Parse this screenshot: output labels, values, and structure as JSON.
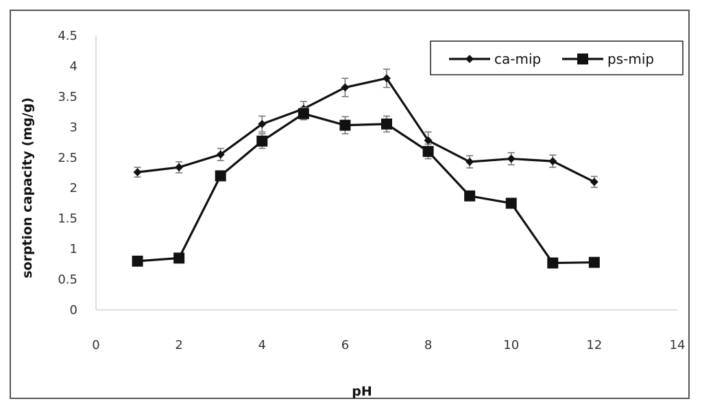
{
  "chart_data": {
    "type": "line",
    "title": "",
    "xlabel": "pH",
    "ylabel": "sorption capacity (mg/g)",
    "xlim": [
      0,
      14
    ],
    "ylim": [
      0,
      4.5
    ],
    "x_ticks": [
      "0",
      "2",
      "4",
      "6",
      "8",
      "10",
      "12",
      "14"
    ],
    "y_ticks": [
      "0",
      "0.5",
      "1",
      "1.5",
      "2",
      "2.5",
      "3",
      "3.5",
      "4",
      "4.5"
    ],
    "grid": false,
    "legend_position": "top-right",
    "series": [
      {
        "name": "ca-mip",
        "marker": "diamond",
        "color": "#111111",
        "x": [
          1,
          2,
          3,
          4,
          5,
          6,
          7,
          8,
          9,
          10,
          11,
          12
        ],
        "y": [
          2.26,
          2.34,
          2.55,
          3.05,
          3.3,
          3.65,
          3.8,
          2.78,
          2.43,
          2.48,
          2.44,
          2.1
        ],
        "error": [
          0.08,
          0.09,
          0.1,
          0.13,
          0.12,
          0.15,
          0.15,
          0.14,
          0.1,
          0.1,
          0.1,
          0.09
        ]
      },
      {
        "name": "ps-mip",
        "marker": "square",
        "color": "#111111",
        "x": [
          1,
          2,
          3,
          4,
          5,
          6,
          7,
          8,
          9,
          10,
          11,
          12
        ],
        "y": [
          0.8,
          0.85,
          2.2,
          2.77,
          3.22,
          3.03,
          3.05,
          2.6,
          1.87,
          1.75,
          0.77,
          0.78
        ],
        "error": [
          0.0,
          0.0,
          0.07,
          0.12,
          0.1,
          0.14,
          0.13,
          0.12,
          0.05,
          0.0,
          0.0,
          0.0
        ]
      }
    ]
  }
}
